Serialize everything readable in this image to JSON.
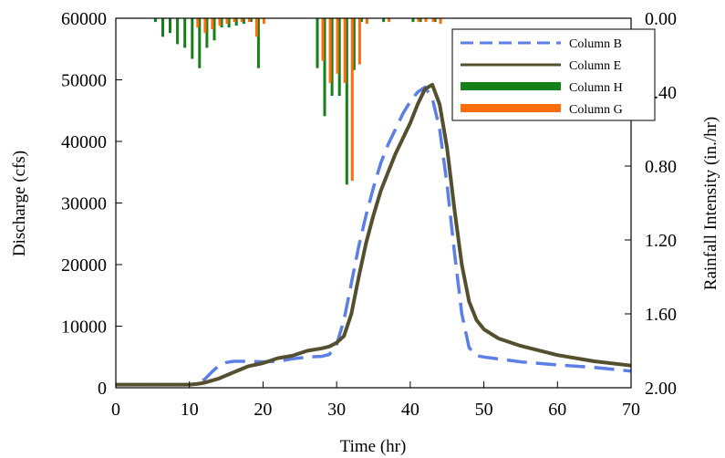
{
  "chart_data": {
    "type": "line",
    "title": "",
    "xlabel": "Time (hr)",
    "ylabel": "Discharge (cfs)",
    "y2label": "Rainfall Intensity (in./hr)",
    "xlim": [
      0,
      70
    ],
    "ylim": [
      0,
      60000
    ],
    "y2lim": [
      0,
      2.0
    ],
    "y2_inverted": true,
    "grid": false,
    "legend_position": "top-right",
    "x_ticks": [
      "0",
      "10",
      "20",
      "30",
      "40",
      "50",
      "60",
      "70"
    ],
    "y_ticks": [
      "0",
      "10000",
      "20000",
      "30000",
      "40000",
      "50000",
      "60000"
    ],
    "y2_ticks": [
      "0.00",
      "0.40",
      "0.80",
      "1.20",
      "1.60",
      "2.00"
    ],
    "series": [
      {
        "name": "Column B",
        "kind": "line",
        "axis": "left",
        "color": "#5b7fe6",
        "dash": "dashed",
        "x": [
          0,
          10,
          11,
          12,
          13,
          14,
          15,
          16,
          18,
          20,
          22,
          24,
          26,
          28,
          29,
          30,
          31,
          32,
          33,
          34,
          35,
          36,
          37,
          38,
          39,
          40,
          41,
          42,
          43,
          44,
          45,
          46,
          47,
          48,
          49,
          50,
          55,
          60,
          65,
          70
        ],
        "y": [
          500,
          500,
          700,
          1300,
          2500,
          3600,
          4100,
          4300,
          4300,
          4200,
          4300,
          4700,
          5000,
          5100,
          5400,
          7000,
          11000,
          17000,
          23000,
          28000,
          32500,
          36500,
          39500,
          42000,
          44500,
          46500,
          48000,
          48800,
          47000,
          42000,
          33000,
          22000,
          12000,
          6500,
          5200,
          5000,
          4200,
          3700,
          3300,
          2700
        ]
      },
      {
        "name": "Column E",
        "kind": "line",
        "axis": "left",
        "color": "#54502f",
        "dash": "solid",
        "x": [
          0,
          10,
          11,
          12,
          14,
          16,
          18,
          20,
          22,
          24,
          26,
          28,
          29,
          30,
          31,
          32,
          33,
          34,
          35,
          36,
          37,
          38,
          39,
          40,
          41,
          42,
          43,
          44,
          45,
          46,
          47,
          48,
          49,
          50,
          52,
          55,
          60,
          65,
          70
        ],
        "y": [
          500,
          500,
          600,
          800,
          1500,
          2500,
          3500,
          4000,
          4800,
          5200,
          6000,
          6400,
          6700,
          7300,
          8400,
          12000,
          18000,
          23500,
          28000,
          32000,
          35000,
          38000,
          40500,
          43000,
          46000,
          48500,
          49200,
          46000,
          39000,
          29000,
          20000,
          14000,
          11000,
          9500,
          8000,
          6800,
          5300,
          4300,
          3600
        ]
      },
      {
        "name": "Column H",
        "kind": "bar",
        "axis": "right",
        "color": "#15801a",
        "x": [
          5.5,
          6.5,
          7.5,
          8.5,
          9.5,
          10.5,
          11.5,
          12.5,
          13.5,
          14.5,
          15.5,
          16.5,
          17.5,
          18.5,
          19.5,
          27.5,
          28.5,
          29.5,
          30.5,
          31.5,
          32.5,
          33.5,
          36.5,
          40.5,
          41.5,
          43.5
        ],
        "y": [
          0.02,
          0.1,
          0.08,
          0.14,
          0.16,
          0.22,
          0.27,
          0.16,
          0.12,
          0.05,
          0.05,
          0.04,
          0.03,
          0.02,
          0.27,
          0.27,
          0.53,
          0.42,
          0.42,
          0.9,
          0.28,
          0.02,
          0.02,
          0.02,
          0.02,
          0.02
        ]
      },
      {
        "name": "Column G",
        "kind": "bar",
        "axis": "right",
        "color": "#ff6c0a",
        "x": [
          11,
          12,
          13,
          14,
          15,
          16,
          17,
          18,
          19,
          20,
          28,
          29,
          30,
          31,
          32,
          33,
          34,
          37,
          41,
          42,
          43,
          44
        ],
        "y": [
          0.05,
          0.08,
          0.06,
          0.04,
          0.03,
          0.02,
          0.02,
          0.02,
          0.1,
          0.03,
          0.23,
          0.35,
          0.3,
          0.35,
          0.88,
          0.25,
          0.03,
          0.02,
          0.02,
          0.02,
          0.02,
          0.03
        ]
      }
    ]
  }
}
